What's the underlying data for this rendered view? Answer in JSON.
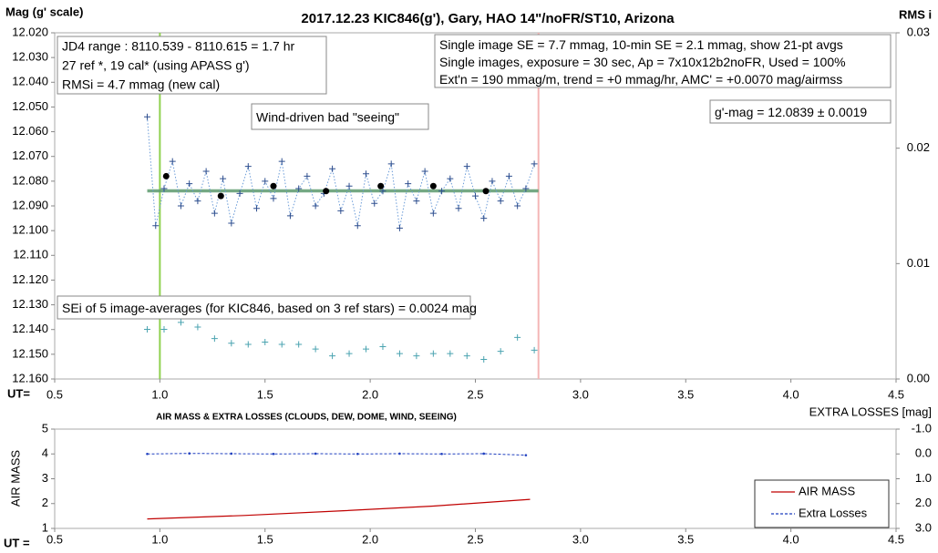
{
  "chart_data": [
    {
      "type": "scatter",
      "title": "2017.12.23  KIC846(g'),  Gary, HAO  14\"/noFR/ST10,  Arizona",
      "ylabel": "Mag (g' scale)",
      "y2label": "RMS i",
      "xlabel": "UT=",
      "xlim": [
        0.5,
        4.5
      ],
      "xticks": [
        0.5,
        {
          "value": 1,
          "label": "1.0"
        },
        1.5,
        {
          "value": 2,
          "label": "2.0"
        },
        2.5,
        {
          "value": 3,
          "label": "3.0"
        },
        3.5,
        {
          "value": 4,
          "label": "4.0"
        },
        4.5
      ],
      "ylim": [
        12.02,
        12.16
      ],
      "y_reversed": true,
      "yticks": [
        {
          "value": 12.02,
          "label": "12.020"
        },
        {
          "value": 12.03,
          "label": "12.030"
        },
        {
          "value": 12.04,
          "label": "12.040"
        },
        {
          "value": 12.05,
          "label": "12.050"
        },
        {
          "value": 12.06,
          "label": "12.060"
        },
        {
          "value": 12.07,
          "label": "12.070"
        },
        {
          "value": 12.08,
          "label": "12.080"
        },
        {
          "value": 12.09,
          "label": "12.090"
        },
        {
          "value": 12.1,
          "label": "12.100"
        },
        {
          "value": 12.11,
          "label": "12.110"
        },
        {
          "value": 12.12,
          "label": "12.120"
        },
        {
          "value": 12.13,
          "label": "12.130"
        },
        {
          "value": 12.14,
          "label": "12.140"
        },
        {
          "value": 12.15,
          "label": "12.150"
        },
        {
          "value": 12.16,
          "label": "12.160"
        }
      ],
      "y2lim": [
        0,
        0.03
      ],
      "y2ticks": [
        {
          "value": 0,
          "label": "0.00"
        },
        {
          "value": 0.01,
          "label": "0.01"
        },
        {
          "value": 0.02,
          "label": "0.02"
        },
        {
          "value": 0.03,
          "label": "0.03"
        }
      ],
      "grid": false,
      "series": [
        {
          "color": "#2f4f8f",
          "line_color": "#6a9bd8",
          "marker": "plus",
          "line": "dotted",
          "x": [
            0.94,
            0.98,
            1.02,
            1.06,
            1.1,
            1.14,
            1.18,
            1.22,
            1.26,
            1.3,
            1.34,
            1.38,
            1.42,
            1.46,
            1.5,
            1.54,
            1.58,
            1.62,
            1.66,
            1.7,
            1.74,
            1.78,
            1.82,
            1.86,
            1.9,
            1.94,
            1.98,
            2.02,
            2.06,
            2.1,
            2.14,
            2.18,
            2.22,
            2.26,
            2.3,
            2.34,
            2.38,
            2.42,
            2.46,
            2.5,
            2.54,
            2.58,
            2.62,
            2.66,
            2.7,
            2.74,
            2.78
          ],
          "values": [
            12.054,
            12.098,
            12.083,
            12.072,
            12.09,
            12.081,
            12.088,
            12.076,
            12.093,
            12.079,
            12.097,
            12.085,
            12.074,
            12.091,
            12.08,
            12.087,
            12.072,
            12.094,
            12.083,
            12.078,
            12.09,
            12.085,
            12.075,
            12.092,
            12.082,
            12.098,
            12.077,
            12.089,
            12.084,
            12.073,
            12.099,
            12.081,
            12.088,
            12.076,
            12.093,
            12.084,
            12.079,
            12.091,
            12.074,
            12.086,
            12.095,
            12.08,
            12.088,
            12.078,
            12.09,
            12.083,
            12.073
          ]
        },
        {
          "color": "#000000",
          "marker": "dot",
          "line": "none",
          "x": [
            1.03,
            1.29,
            1.54,
            1.79,
            2.05,
            2.3,
            2.55
          ],
          "values": [
            12.078,
            12.086,
            12.082,
            12.084,
            12.082,
            12.082,
            12.084
          ]
        },
        {
          "color": "#4aa3b0",
          "marker": "plus",
          "line": "none",
          "axis": "y2",
          "x": [
            0.94,
            1.02,
            1.1,
            1.18,
            1.26,
            1.34,
            1.42,
            1.5,
            1.58,
            1.66,
            1.74,
            1.82,
            1.9,
            1.98,
            2.06,
            2.14,
            2.22,
            2.3,
            2.38,
            2.46,
            2.54,
            2.62,
            2.7,
            2.78
          ],
          "values": [
            0.0043,
            0.0043,
            0.0049,
            0.0045,
            0.0035,
            0.0031,
            0.003,
            0.0032,
            0.003,
            0.003,
            0.0026,
            0.002,
            0.0022,
            0.0026,
            0.0028,
            0.0022,
            0.002,
            0.0022,
            0.0022,
            0.002,
            0.0017,
            0.0024,
            0.0036,
            0.0025
          ]
        }
      ],
      "mean_line": {
        "value": 12.0839,
        "x": [
          0.94,
          2.8
        ],
        "color": "#5d9b6f"
      },
      "vlines": [
        {
          "x": 1,
          "color": "#8fd14f"
        },
        {
          "x": 2.8,
          "color": "#f4b6b6"
        }
      ],
      "text_boxes": [
        [
          "JD4 range : 8110.539 - 8110.615 = 1.7  hr",
          "27 ref *, 19 cal* (using APASS g')",
          "RMSi = 4.7 mmag (new cal)"
        ],
        [
          "Single image SE = 7.7 mmag, 10-min SE = 2.1 mmag, show  21-pt avgs",
          "Single images, exposure = 30 sec, Ap = 7x10x12b2noFR,  Used = 100%",
          "Ext'n = 190 mmag/m, trend =  +0 mmag/hr, AMC' = +0.0070 mag/airmss"
        ],
        [
          "g'-mag = 12.0839 ± 0.0019"
        ],
        [
          "Wind-driven bad \"seeing\""
        ],
        [
          "SEi of 5 image-averages (for KIC846, based on 3 ref stars) = 0.0024  mag"
        ]
      ]
    },
    {
      "type": "line",
      "title": "AIR MASS & EXTRA LOSSES (CLOUDS, DEW, DOME, WIND, SEEING)",
      "ylabel": "AIR MASS",
      "y2label": "EXTRA LOSSES [mag]",
      "xlabel": "UT =",
      "xlim": [
        0.5,
        4.5
      ],
      "xticks": [
        0.5,
        {
          "value": 1,
          "label": "1.0"
        },
        1.5,
        {
          "value": 2,
          "label": "2.0"
        },
        2.5,
        {
          "value": 3,
          "label": "3.0"
        },
        3.5,
        {
          "value": 4,
          "label": "4.0"
        },
        4.5
      ],
      "ylim": [
        1,
        5
      ],
      "yticks": [
        1,
        2,
        3,
        4,
        5
      ],
      "y2lim": [
        -1,
        3
      ],
      "y2_reversed": true,
      "y2ticks": [
        {
          "value": -1,
          "label": "-1.0"
        },
        {
          "value": 0,
          "label": "0.0"
        },
        {
          "value": 1,
          "label": "1.0"
        },
        {
          "value": 2,
          "label": "2.0"
        },
        {
          "value": 3,
          "label": "3.0"
        }
      ],
      "grid": false,
      "legend": "lower right",
      "series": [
        {
          "name": "AIR MASS",
          "color": "#c00000",
          "marker": "none",
          "line": "solid",
          "x": [
            0.94,
            1.4,
            1.85,
            2.3,
            2.76
          ],
          "values": [
            1.38,
            1.52,
            1.7,
            1.9,
            2.17
          ]
        },
        {
          "name": "Extra Losses",
          "color": "#1f3fbf",
          "marker": "dot",
          "line": "dashed",
          "axis": "y2",
          "x": [
            0.94,
            1.14,
            1.34,
            1.54,
            1.74,
            1.94,
            2.14,
            2.34,
            2.54,
            2.74
          ],
          "values": [
            0.0,
            -0.02,
            -0.01,
            0.0,
            -0.01,
            0.0,
            -0.01,
            0.0,
            -0.01,
            0.05
          ]
        }
      ]
    }
  ]
}
